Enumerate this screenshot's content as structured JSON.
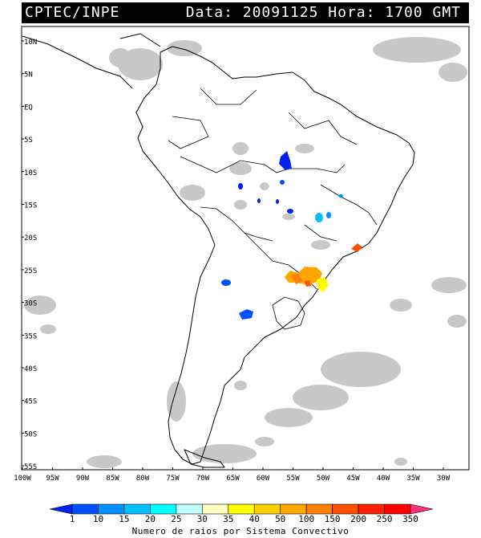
{
  "header": {
    "source": "CPTEC/INPE",
    "datetime": "Data: 20091125 Hora: 1700 GMT"
  },
  "map": {
    "lat_labels": [
      "10N",
      "5N",
      "EQ",
      "5S",
      "10S",
      "15S",
      "20S",
      "25S",
      "30S",
      "35S",
      "40S",
      "45S",
      "50S",
      "55S"
    ],
    "lon_labels": [
      "100W",
      "95W",
      "90W",
      "85W",
      "80W",
      "75W",
      "70W",
      "65W",
      "60W",
      "55W",
      "50W",
      "45W",
      "40W",
      "35W",
      "30W"
    ],
    "lat_range": [
      -56,
      11
    ],
    "lon_range": [
      -100,
      -27
    ]
  },
  "colorbar": {
    "title": "Numero de raios por Sistema Convectivo",
    "tick_labels": [
      "1",
      "10",
      "15",
      "20",
      "25",
      "30",
      "35",
      "40",
      "50",
      "100",
      "150",
      "200",
      "250",
      "350"
    ],
    "colors": [
      "#0022ee",
      "#0050ff",
      "#0090ff",
      "#00c0ff",
      "#00ffff",
      "#c0ffff",
      "#ffffc0",
      "#ffff00",
      "#ffd000",
      "#ffa500",
      "#ff8000",
      "#ff5000",
      "#ff2000",
      "#ff0000",
      "#ff3080"
    ]
  },
  "colors": {
    "cloud": "#c8c8c8",
    "coast": "#000000",
    "frame_bg": "#ffffff"
  }
}
